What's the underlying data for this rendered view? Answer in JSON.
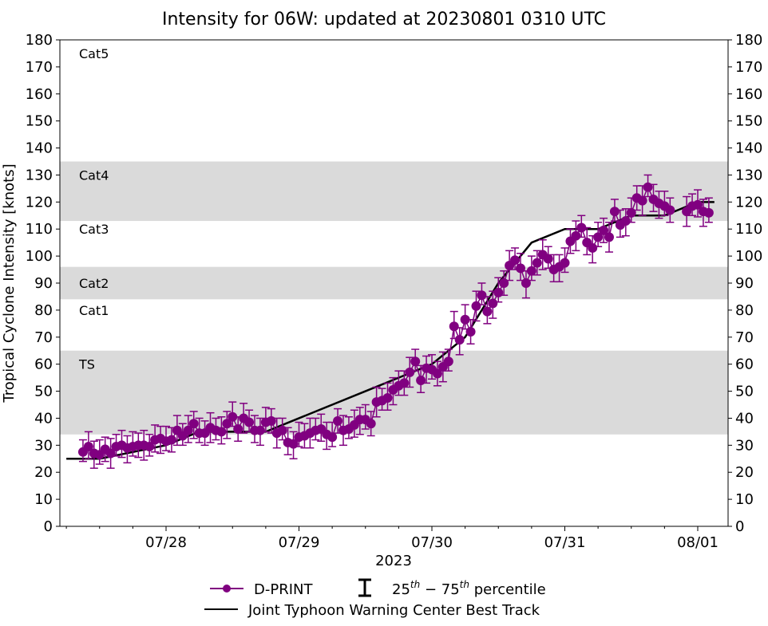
{
  "chart_data": {
    "type": "line",
    "title": "Intensity for 06W: updated at 20230801 0310 UTC",
    "xlabel": "2023",
    "ylabel": "Tropical Cyclone Intensity [knots]",
    "ylim": [
      0,
      180
    ],
    "yticks": [
      0,
      10,
      20,
      30,
      40,
      50,
      60,
      70,
      80,
      90,
      100,
      110,
      120,
      130,
      140,
      150,
      160,
      170,
      180
    ],
    "x_units": "hours since 07/27 00 UTC",
    "xlim": [
      -4.5,
      140
    ],
    "xticks": [
      {
        "h": 24,
        "label": "07/28"
      },
      {
        "h": 48,
        "label": "07/29"
      },
      {
        "h": 72,
        "label": "07/30"
      },
      {
        "h": 96,
        "label": "07/31"
      },
      {
        "h": 120,
        "label": "08/01"
      }
    ],
    "minor_tick_hours": 6,
    "category_bands": [
      {
        "label": "TS",
        "range": [
          34,
          65
        ],
        "shaded": true,
        "label_y": 60
      },
      {
        "label": "Cat1",
        "range": [
          65,
          84
        ],
        "shaded": false,
        "label_y": 80
      },
      {
        "label": "Cat2",
        "range": [
          84,
          96
        ],
        "shaded": true,
        "label_y": 90
      },
      {
        "label": "Cat3",
        "range": [
          96,
          113
        ],
        "shaded": false,
        "label_y": 110
      },
      {
        "label": "Cat4",
        "range": [
          113,
          135
        ],
        "shaded": true,
        "label_y": 130
      },
      {
        "label": "Cat5",
        "range": [
          135,
          180
        ],
        "shaded": false,
        "label_y": 175
      }
    ],
    "series": [
      {
        "name": "D-PRINT",
        "color": "#800080",
        "start_hour": 9,
        "values": [
          27.5,
          29.5,
          27,
          26.5,
          28.5,
          27,
          29.5,
          30,
          29,
          29.5,
          30,
          30,
          29.5,
          32,
          32.5,
          31.5,
          32,
          35.5,
          33.5,
          35.5,
          38,
          34.5,
          34.5,
          36.5,
          35.5,
          35,
          38,
          40.5,
          36,
          40,
          38.5,
          35.5,
          35.5,
          38.5,
          39,
          34.5,
          35.5,
          31,
          30.5,
          33,
          33.5,
          34.5,
          35.5,
          36,
          34,
          33,
          39,
          35.5,
          36,
          37.5,
          39.5,
          39.5,
          38,
          46,
          46.5,
          47.5,
          50.5,
          52,
          53,
          57,
          61,
          54,
          58.5,
          58,
          56.5,
          59,
          61,
          74,
          69,
          76.5,
          72,
          81.5,
          85.5,
          79.5,
          82.5,
          86.5,
          90,
          96.5,
          98.5,
          95.5,
          90,
          94.5,
          97.5,
          100.5,
          99,
          95,
          96,
          97.5,
          105.5,
          107.5,
          110.5,
          105,
          103,
          107,
          109.5,
          107,
          116.5,
          111.5,
          113,
          116,
          121.5,
          120.5,
          125.5,
          121,
          119.5,
          118.5,
          117
        ],
        "late_hours": [
          118,
          119,
          120,
          121,
          122
        ],
        "late_values": [
          116.5,
          118.5,
          119,
          116.5,
          116
        ],
        "p25_offset": 3.5,
        "p75_offset": 4.5
      },
      {
        "name": "Joint Typhoon Warning Center Best Track",
        "color": "#000000",
        "points": [
          [
            6,
            25
          ],
          [
            12,
            25
          ],
          [
            24,
            30
          ],
          [
            30,
            35
          ],
          [
            36,
            35
          ],
          [
            42,
            35
          ],
          [
            48,
            40
          ],
          [
            54,
            45
          ],
          [
            60,
            50
          ],
          [
            66,
            55
          ],
          [
            72,
            60
          ],
          [
            78,
            70
          ],
          [
            84,
            90
          ],
          [
            90,
            105
          ],
          [
            96,
            110
          ],
          [
            102,
            110
          ],
          [
            108,
            115
          ],
          [
            114,
            115
          ],
          [
            120,
            120
          ],
          [
            123,
            120
          ]
        ]
      }
    ],
    "legend": {
      "placement": "bottom-center",
      "dprint": "D-PRINT",
      "percentile_pre": "25",
      "percentile_sup1": "th",
      "percentile_mid": " − 75",
      "percentile_sup2": "th",
      "percentile_post": " percentile",
      "best_track": "Joint Typhoon Warning Center Best Track"
    }
  }
}
